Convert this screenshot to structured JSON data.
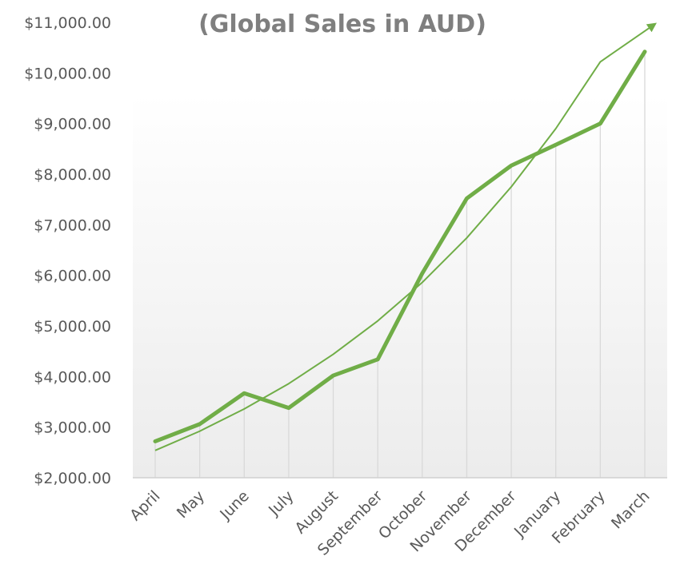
{
  "chart_data": {
    "type": "line",
    "title": "(Global Sales in AUD)",
    "xlabel": "",
    "ylabel": "",
    "categories": [
      "April",
      "May",
      "June",
      "July",
      "August",
      "September",
      "October",
      "November",
      "December",
      "January",
      "February",
      "March"
    ],
    "series": [
      {
        "values": [
          2720,
          3060,
          3670,
          3380,
          4020,
          4340,
          6040,
          7520,
          8170,
          8580,
          9000,
          10420
        ],
        "color": "#70ad47"
      }
    ],
    "trendline": {
      "type": "exponential",
      "values": [
        2540,
        2920,
        3360,
        3860,
        4440,
        5100,
        5860,
        6740,
        7750,
        8900,
        10220,
        10960
      ],
      "color": "#70ad47",
      "arrow_end": true
    },
    "y_ticks": [
      "$2,000.00",
      "$3,000.00",
      "$4,000.00",
      "$5,000.00",
      "$6,000.00",
      "$7,000.00",
      "$8,000.00",
      "$9,000.00",
      "$10,000.00",
      "$11,000.00"
    ],
    "ylim": [
      2000,
      11000
    ],
    "grid": "vertical drop lines",
    "legend": "none",
    "background": "white-to-light-gray gradient"
  }
}
